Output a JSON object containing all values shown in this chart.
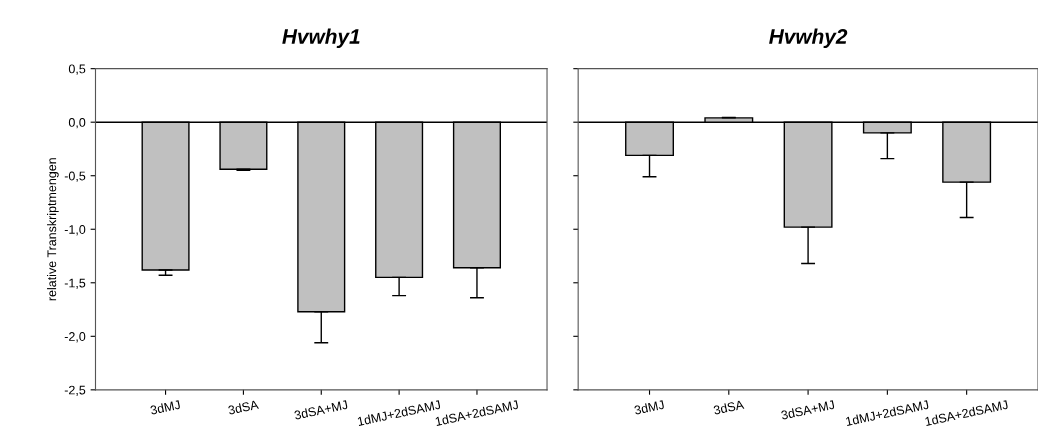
{
  "chart_data": [
    {
      "type": "bar",
      "title": "Hvwhy1",
      "ylabel": "relative Transkriptmengen",
      "categories": [
        "3dMJ",
        "3dSA",
        "3dSA+MJ",
        "1dMJ+2dSAMJ",
        "1dSA+2dSAMJ"
      ],
      "values": [
        -1.38,
        -0.44,
        -1.77,
        -1.45,
        -1.36
      ],
      "errors": [
        [
          -1.43,
          -1.38
        ],
        [
          -0.45,
          -0.44
        ],
        [
          -2.06,
          -1.77
        ],
        [
          -1.62,
          -1.45
        ],
        [
          -1.64,
          -1.36
        ]
      ],
      "color": "#c0c0c0",
      "ylim": [
        -2.5,
        0.5
      ],
      "yticks": [
        {
          "value": 0.5,
          "label": "0,5"
        },
        {
          "value": 0,
          "label": "0,0"
        },
        {
          "value": -0.5,
          "label": "-0,5"
        },
        {
          "value": -1,
          "label": "-1,0"
        },
        {
          "value": -1.5,
          "label": "-1,5"
        },
        {
          "value": -2,
          "label": "-2,0"
        },
        {
          "value": -2.5,
          "label": "-2,5"
        }
      ],
      "ref_lines": [
        {
          "axis": "y",
          "value": 0,
          "label": null,
          "color": "#000000"
        }
      ]
    },
    {
      "type": "bar",
      "title": "Hvwhy2",
      "categories": [
        "3dMJ",
        "3dSA",
        "3dSA+MJ",
        "1dMJ+2dSAMJ",
        "1dSA+2dSAMJ"
      ],
      "values": [
        -0.31,
        0.04,
        -0.98,
        -0.1,
        -0.56
      ],
      "errors": [
        [
          -0.51,
          -0.31
        ],
        [
          0.04,
          0.045
        ],
        [
          -1.32,
          -0.98
        ],
        [
          -0.34,
          -0.1
        ],
        [
          -0.89,
          -0.56
        ]
      ],
      "color": "#c0c0c0",
      "ylim": [
        -2.5,
        0.5
      ],
      "yticks": [
        {
          "value": 0.5,
          "label": null
        },
        {
          "value": 0,
          "label": null
        },
        {
          "value": -0.5,
          "label": null
        },
        {
          "value": -1,
          "label": null
        },
        {
          "value": -1.5,
          "label": null
        },
        {
          "value": -2,
          "label": null
        },
        {
          "value": -2.5,
          "label": null
        }
      ],
      "tick_labels": "x",
      "ref_lines": [
        {
          "axis": "y",
          "value": 0,
          "label": null,
          "color": "#000000"
        }
      ]
    }
  ]
}
